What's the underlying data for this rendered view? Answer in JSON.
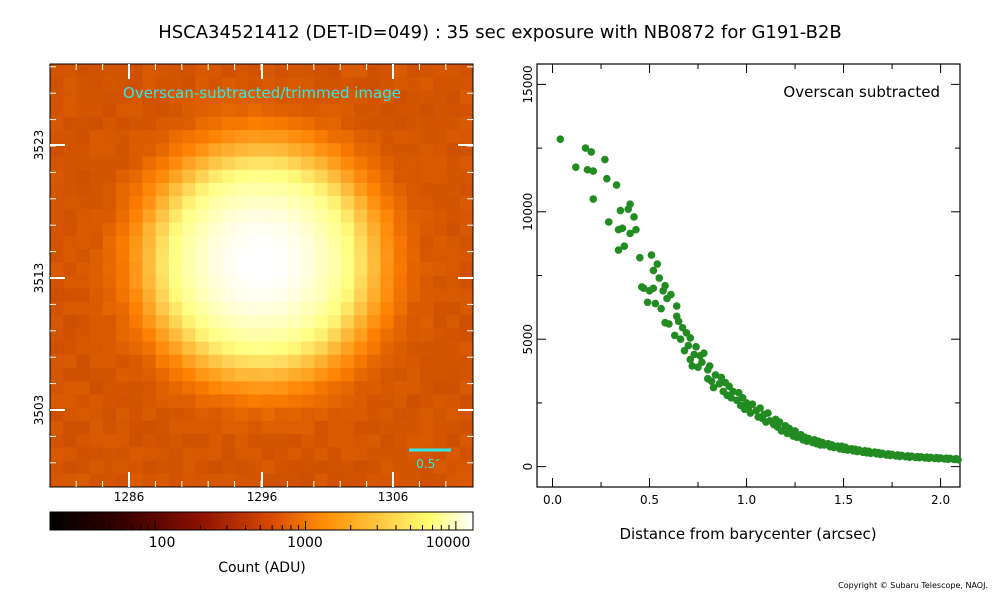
{
  "title": "HSCA34521412 (DET-ID=049) :  35 sec exposure with NB0872 for G191-B2B",
  "copyright": "Copyright © Subaru Telescope, NAOJ.",
  "chart_data": [
    {
      "type": "heatmap",
      "annotation": "Overscan-subtracted/trimmed image",
      "annotation_color": "#33e6e6",
      "x_ticks": [
        "1286",
        "1296",
        "1306"
      ],
      "y_ticks": [
        "3503",
        "3513",
        "3523"
      ],
      "scale_bar_label": "0.5″",
      "colormap": "afmhot",
      "peak_pixel": [
        1297,
        3514
      ]
    },
    {
      "type": "colorbar",
      "scale": "log",
      "tick_labels": [
        "100",
        "1000",
        "10000"
      ],
      "label": "Count (ADU)",
      "range": [
        20,
        13000
      ]
    },
    {
      "type": "scatter",
      "annotation": "Overscan subtracted",
      "xlabel": "Distance from barycenter (arcsec)",
      "ylabel": "",
      "xlim": [
        -0.08,
        2.1
      ],
      "ylim": [
        -800,
        15800
      ],
      "x_ticks": [
        "0.0",
        "0.5",
        "1.0",
        "1.5",
        "2.0"
      ],
      "y_ticks": [
        "0",
        "5000",
        "10000",
        "15000"
      ],
      "point_color": "#228b22",
      "points": [
        [
          0.04,
          12850
        ],
        [
          0.12,
          11750
        ],
        [
          0.17,
          12500
        ],
        [
          0.18,
          11650
        ],
        [
          0.2,
          12350
        ],
        [
          0.21,
          10500
        ],
        [
          0.21,
          11600
        ],
        [
          0.27,
          12050
        ],
        [
          0.28,
          11300
        ],
        [
          0.29,
          9600
        ],
        [
          0.33,
          11050
        ],
        [
          0.34,
          8500
        ],
        [
          0.34,
          9300
        ],
        [
          0.35,
          10050
        ],
        [
          0.36,
          9350
        ],
        [
          0.37,
          8650
        ],
        [
          0.39,
          10100
        ],
        [
          0.4,
          10300
        ],
        [
          0.4,
          9150
        ],
        [
          0.42,
          9800
        ],
        [
          0.43,
          9300
        ],
        [
          0.45,
          8200
        ],
        [
          0.46,
          7050
        ],
        [
          0.47,
          7000
        ],
        [
          0.49,
          6450
        ],
        [
          0.5,
          6900
        ],
        [
          0.51,
          8300
        ],
        [
          0.52,
          7700
        ],
        [
          0.52,
          7000
        ],
        [
          0.53,
          6400
        ],
        [
          0.54,
          7950
        ],
        [
          0.55,
          7400
        ],
        [
          0.56,
          6200
        ],
        [
          0.57,
          6900
        ],
        [
          0.58,
          5650
        ],
        [
          0.58,
          7100
        ],
        [
          0.59,
          6600
        ],
        [
          0.6,
          5600
        ],
        [
          0.61,
          6750
        ],
        [
          0.63,
          5150
        ],
        [
          0.64,
          6300
        ],
        [
          0.64,
          5900
        ],
        [
          0.65,
          5700
        ],
        [
          0.66,
          5000
        ],
        [
          0.67,
          5450
        ],
        [
          0.68,
          4550
        ],
        [
          0.69,
          5250
        ],
        [
          0.7,
          4750
        ],
        [
          0.71,
          5050
        ],
        [
          0.71,
          4200
        ],
        [
          0.72,
          3950
        ],
        [
          0.73,
          4400
        ],
        [
          0.74,
          4700
        ],
        [
          0.75,
          3900
        ],
        [
          0.76,
          4350
        ],
        [
          0.77,
          4100
        ],
        [
          0.78,
          4450
        ],
        [
          0.8,
          3800
        ],
        [
          0.8,
          3450
        ],
        [
          0.81,
          3950
        ],
        [
          0.82,
          3350
        ],
        [
          0.83,
          3100
        ],
        [
          0.84,
          3600
        ],
        [
          0.86,
          3250
        ],
        [
          0.87,
          3500
        ],
        [
          0.88,
          2950
        ],
        [
          0.89,
          3300
        ],
        [
          0.9,
          2800
        ],
        [
          0.91,
          3150
        ],
        [
          0.92,
          2700
        ],
        [
          0.93,
          2950
        ],
        [
          0.95,
          2600
        ],
        [
          0.96,
          2900
        ],
        [
          0.97,
          2400
        ],
        [
          0.98,
          2700
        ],
        [
          0.99,
          2250
        ],
        [
          1.0,
          2500
        ],
        [
          1.01,
          2300
        ],
        [
          1.02,
          2100
        ],
        [
          1.03,
          2450
        ],
        [
          1.05,
          2200
        ],
        [
          1.06,
          1950
        ],
        [
          1.07,
          2300
        ],
        [
          1.08,
          1900
        ],
        [
          1.09,
          2050
        ],
        [
          1.1,
          1750
        ],
        [
          1.11,
          2100
        ],
        [
          1.12,
          1800
        ],
        [
          1.14,
          1650
        ],
        [
          1.15,
          1850
        ],
        [
          1.16,
          1550
        ],
        [
          1.17,
          1750
        ],
        [
          1.18,
          1400
        ],
        [
          1.2,
          1600
        ],
        [
          1.21,
          1300
        ],
        [
          1.22,
          1500
        ],
        [
          1.23,
          1350
        ],
        [
          1.24,
          1200
        ],
        [
          1.25,
          1400
        ],
        [
          1.26,
          1150
        ],
        [
          1.28,
          1250
        ],
        [
          1.29,
          1050
        ],
        [
          1.3,
          1150
        ],
        [
          1.31,
          1000
        ],
        [
          1.32,
          1100
        ],
        [
          1.34,
          950
        ],
        [
          1.35,
          1050
        ],
        [
          1.36,
          900
        ],
        [
          1.37,
          1000
        ],
        [
          1.38,
          850
        ],
        [
          1.39,
          950
        ],
        [
          1.4,
          850
        ],
        [
          1.42,
          900
        ],
        [
          1.43,
          780
        ],
        [
          1.44,
          850
        ],
        [
          1.45,
          750
        ],
        [
          1.47,
          800
        ],
        [
          1.48,
          700
        ],
        [
          1.49,
          800
        ],
        [
          1.5,
          680
        ],
        [
          1.51,
          760
        ],
        [
          1.52,
          650
        ],
        [
          1.54,
          700
        ],
        [
          1.55,
          620
        ],
        [
          1.56,
          680
        ],
        [
          1.57,
          590
        ],
        [
          1.58,
          650
        ],
        [
          1.6,
          560
        ],
        [
          1.61,
          620
        ],
        [
          1.62,
          540
        ],
        [
          1.63,
          600
        ],
        [
          1.64,
          520
        ],
        [
          1.66,
          570
        ],
        [
          1.67,
          500
        ],
        [
          1.68,
          550
        ],
        [
          1.69,
          480
        ],
        [
          1.7,
          520
        ],
        [
          1.72,
          460
        ],
        [
          1.73,
          500
        ],
        [
          1.74,
          440
        ],
        [
          1.75,
          480
        ],
        [
          1.77,
          420
        ],
        [
          1.78,
          460
        ],
        [
          1.79,
          400
        ],
        [
          1.8,
          440
        ],
        [
          1.82,
          390
        ],
        [
          1.83,
          420
        ],
        [
          1.84,
          370
        ],
        [
          1.85,
          410
        ],
        [
          1.87,
          360
        ],
        [
          1.88,
          390
        ],
        [
          1.89,
          350
        ],
        [
          1.9,
          380
        ],
        [
          1.92,
          340
        ],
        [
          1.93,
          370
        ],
        [
          1.94,
          330
        ],
        [
          1.95,
          360
        ],
        [
          1.97,
          320
        ],
        [
          1.98,
          350
        ],
        [
          1.99,
          310
        ],
        [
          2.0,
          340
        ],
        [
          2.02,
          300
        ],
        [
          2.03,
          330
        ],
        [
          2.04,
          290
        ],
        [
          2.05,
          320
        ],
        [
          2.07,
          280
        ],
        [
          2.08,
          310
        ],
        [
          2.09,
          270
        ]
      ]
    }
  ]
}
